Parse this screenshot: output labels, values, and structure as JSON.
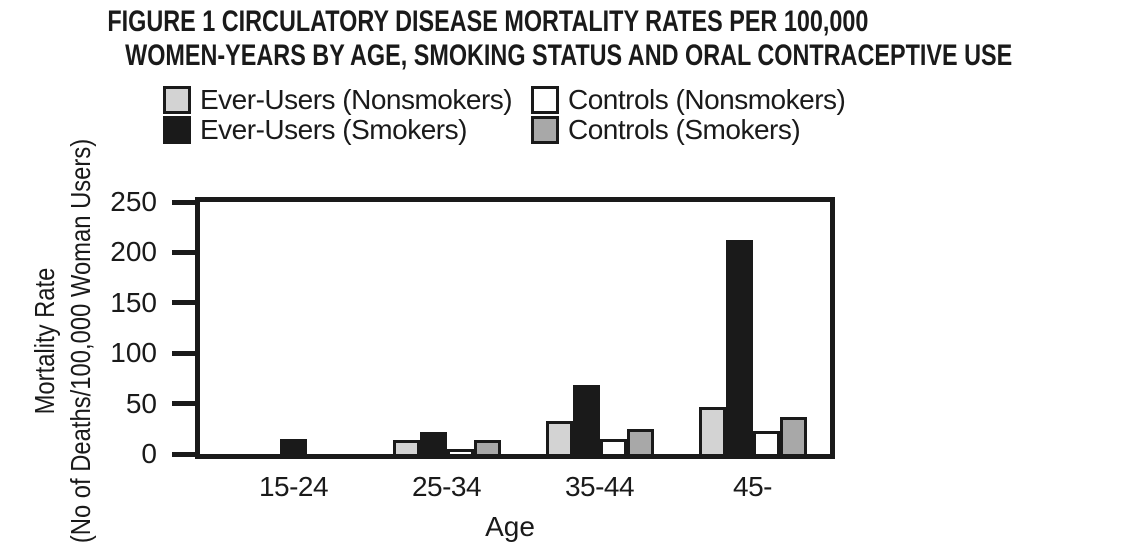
{
  "title": {
    "line1": "FIGURE 1 CIRCULATORY DISEASE MORTALITY RATES PER 100,000",
    "line2": "WOMEN-YEARS BY AGE, SMOKING STATUS AND ORAL CONTRACEPTIVE USE"
  },
  "legend": {
    "items": [
      {
        "label": "Ever-Users (Nonsmokers)",
        "color": "#d3d3d3"
      },
      {
        "label": "Ever-Users (Smokers)",
        "color": "#1a1a1a"
      },
      {
        "label": "Controls (Nonsmokers)",
        "color": "#ffffff"
      },
      {
        "label": "Controls (Smokers)",
        "color": "#a8a8a8"
      }
    ]
  },
  "yaxis": {
    "title_line1": "Mortality Rate",
    "title_line2": "(No of Deaths/100,000 Woman Users)"
  },
  "xaxis": {
    "title": "Age"
  },
  "colors": {
    "ink": "#1a1a1a",
    "ever_users_nonsmokers": "#d3d3d3",
    "ever_users_smokers": "#1a1a1a",
    "controls_nonsmokers": "#ffffff",
    "controls_smokers": "#a8a8a8"
  },
  "chart_data": {
    "type": "bar",
    "title": "FIGURE 1 CIRCULATORY DISEASE MORTALITY RATES PER 100,000 WOMEN-YEARS BY AGE, SMOKING STATUS AND ORAL CONTRACEPTIVE USE",
    "categories": [
      "15-24",
      "25-34",
      "35-44",
      "45-"
    ],
    "series": [
      {
        "name": "Ever-Users (Nonsmokers)",
        "color": "#d3d3d3",
        "values": [
          0,
          14,
          33,
          47
        ]
      },
      {
        "name": "Ever-Users (Smokers)",
        "color": "#1a1a1a",
        "values": [
          15,
          22,
          68,
          212
        ]
      },
      {
        "name": "Controls (Nonsmokers)",
        "color": "#ffffff",
        "values": [
          0,
          5,
          15,
          23
        ]
      },
      {
        "name": "Controls (Smokers)",
        "color": "#a8a8a8",
        "values": [
          0,
          14,
          25,
          37
        ]
      }
    ],
    "xlabel": "Age",
    "ylabel": "Mortality Rate (No of Deaths/100,000 Woman Users)",
    "ylim": [
      0,
      250
    ],
    "yticks": [
      0,
      50,
      100,
      150,
      200,
      250
    ],
    "grid": false,
    "legend_position": "top"
  }
}
